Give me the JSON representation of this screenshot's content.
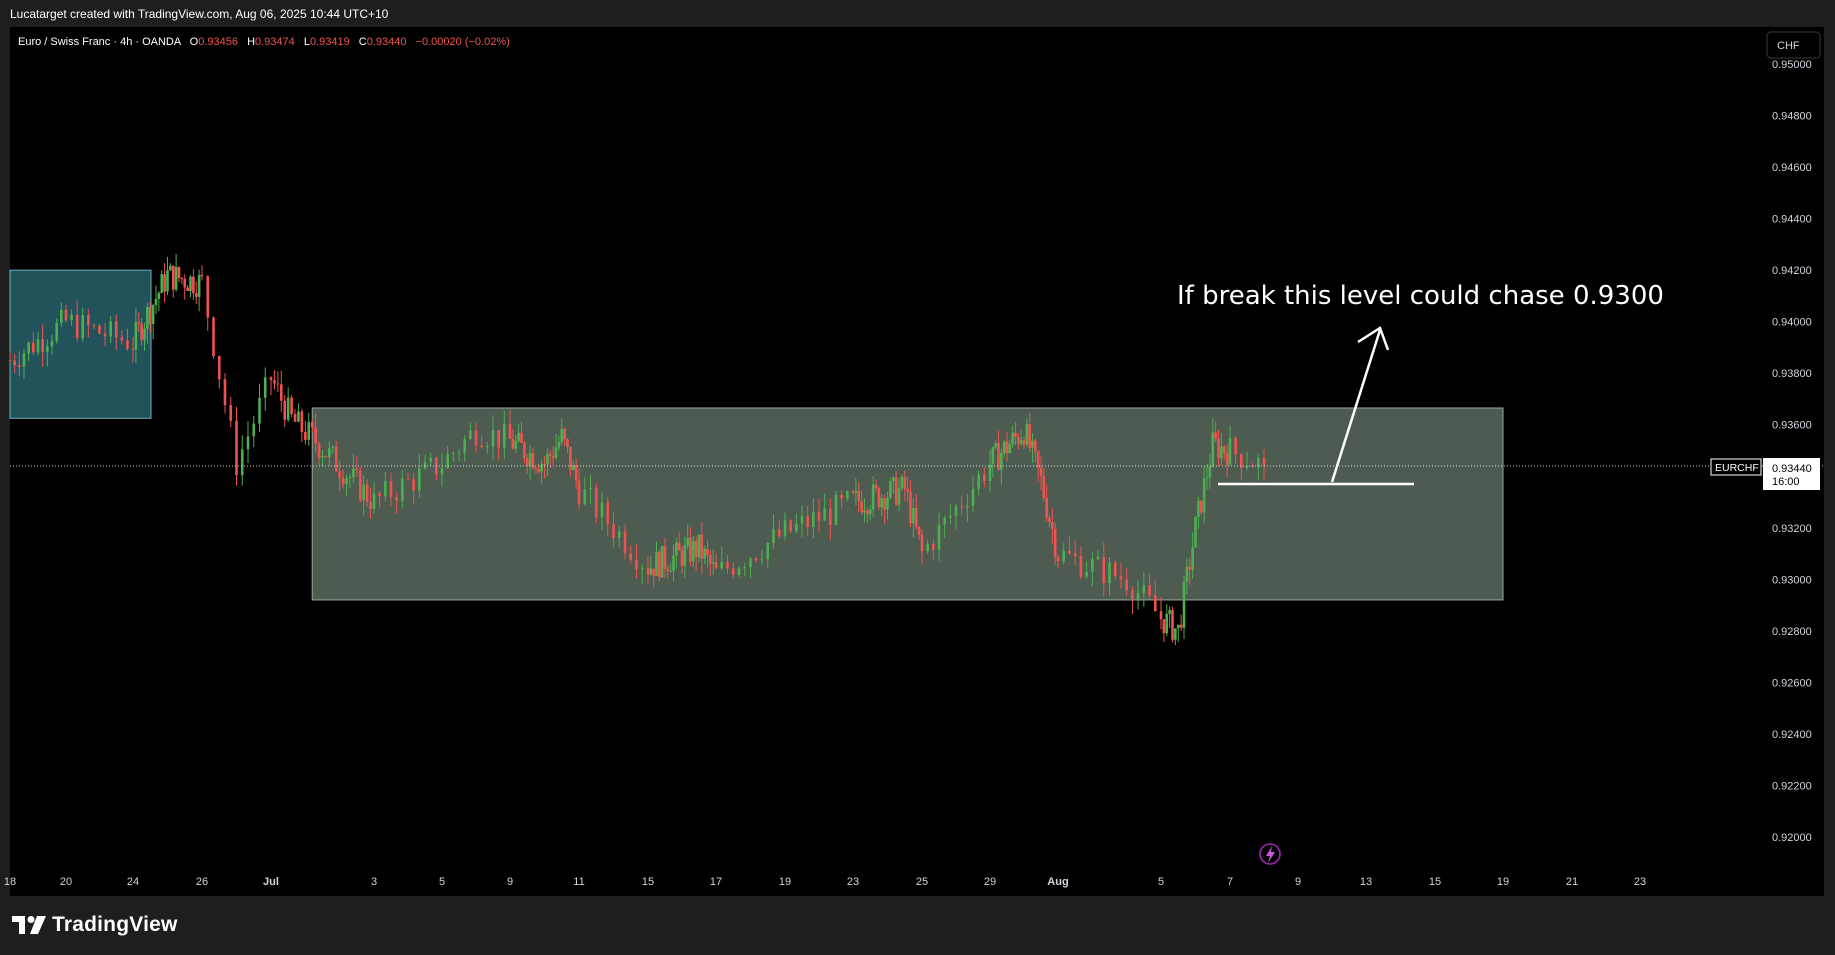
{
  "header": {
    "credit": "Lucatarget created with TradingView.com, Aug 06, 2025 10:44 UTC+10"
  },
  "legend": {
    "title": "Euro / Swiss Franc · 4h · OANDA",
    "o_label": "O",
    "o_value": "0.93456",
    "h_label": "H",
    "h_value": "0.93474",
    "l_label": "L",
    "l_value": "0.93419",
    "c_label": "C",
    "c_value": "0.93440",
    "change": "−0.00020 (−0.02%)"
  },
  "currency_button": "CHF",
  "annotation": "If break this level could chase 0.9300",
  "price_label": {
    "symbol": "EURCHF",
    "price": "0.93440",
    "countdown": "16:00"
  },
  "brand": "TradingView",
  "colors": {
    "up": "#26a69a",
    "up_candle": "#4caf50",
    "down": "#ef5350",
    "range_box": "#5b6b5e",
    "blue_box": "#2f6f78",
    "background": "#000000"
  },
  "chart_data": {
    "type": "candlestick",
    "symbol": "EURCHF",
    "timeframe": "4h",
    "x_tick_labels": [
      "18",
      "20",
      "24",
      "26",
      "Jul",
      "3",
      "5",
      "9",
      "11",
      "15",
      "17",
      "19",
      "23",
      "25",
      "29",
      "Aug",
      "5",
      "7",
      "9",
      "13",
      "15",
      "19",
      "21",
      "23"
    ],
    "y_tick_labels": [
      "0.95000",
      "0.94800",
      "0.94600",
      "0.94400",
      "0.94200",
      "0.94000",
      "0.93800",
      "0.93600",
      "0.93400",
      "0.93200",
      "0.93000",
      "0.92800",
      "0.92600",
      "0.92400",
      "0.92200",
      "0.92000"
    ],
    "ylim": [
      0.919,
      0.951
    ],
    "last_price": 0.9344,
    "range_zone": {
      "top": 0.93665,
      "bottom": 0.9292,
      "from": "Jun 28",
      "to": "Aug 15"
    },
    "supply_zone": {
      "top": 0.942,
      "bottom": 0.93625,
      "from": "Jun 16",
      "to": "Jun 20"
    },
    "horizontal_level": 0.9337,
    "approx_path": [
      [
        "Jun 16",
        0.9385
      ],
      [
        "Jun 18",
        0.94
      ],
      [
        "Jun 20",
        0.9392
      ],
      [
        "Jun 22",
        0.9418
      ],
      [
        "Jun 24",
        0.9415
      ],
      [
        "Jun 25",
        0.9345
      ],
      [
        "Jun 26",
        0.9378
      ],
      [
        "Jun 27",
        0.9362
      ],
      [
        "Jun 28",
        0.9355
      ],
      [
        "Jul 1",
        0.933
      ],
      [
        "Jul 3",
        0.9345
      ],
      [
        "Jul 4",
        0.9358
      ],
      [
        "Jul 7",
        0.9345
      ],
      [
        "Jul 8",
        0.9355
      ],
      [
        "Jul 9",
        0.9335
      ],
      [
        "Jul 11",
        0.9305
      ],
      [
        "Jul 14",
        0.9312
      ],
      [
        "Jul 15",
        0.9302
      ],
      [
        "Jul 17",
        0.9318
      ],
      [
        "Jul 19",
        0.933
      ],
      [
        "Jul 22",
        0.9335
      ],
      [
        "Jul 23",
        0.931
      ],
      [
        "Jul 25",
        0.9345
      ],
      [
        "Jul 27",
        0.9358
      ],
      [
        "Jul 28",
        0.9338
      ],
      [
        "Jul 29",
        0.931
      ],
      [
        "Jul 31",
        0.93
      ],
      [
        "Aug 1",
        0.9285
      ],
      [
        "Aug 2",
        0.928
      ],
      [
        "Aug 3",
        0.932
      ],
      [
        "Aug 4",
        0.9352
      ],
      [
        "Aug 5",
        0.935
      ],
      [
        "Aug 6",
        0.9344
      ]
    ]
  }
}
